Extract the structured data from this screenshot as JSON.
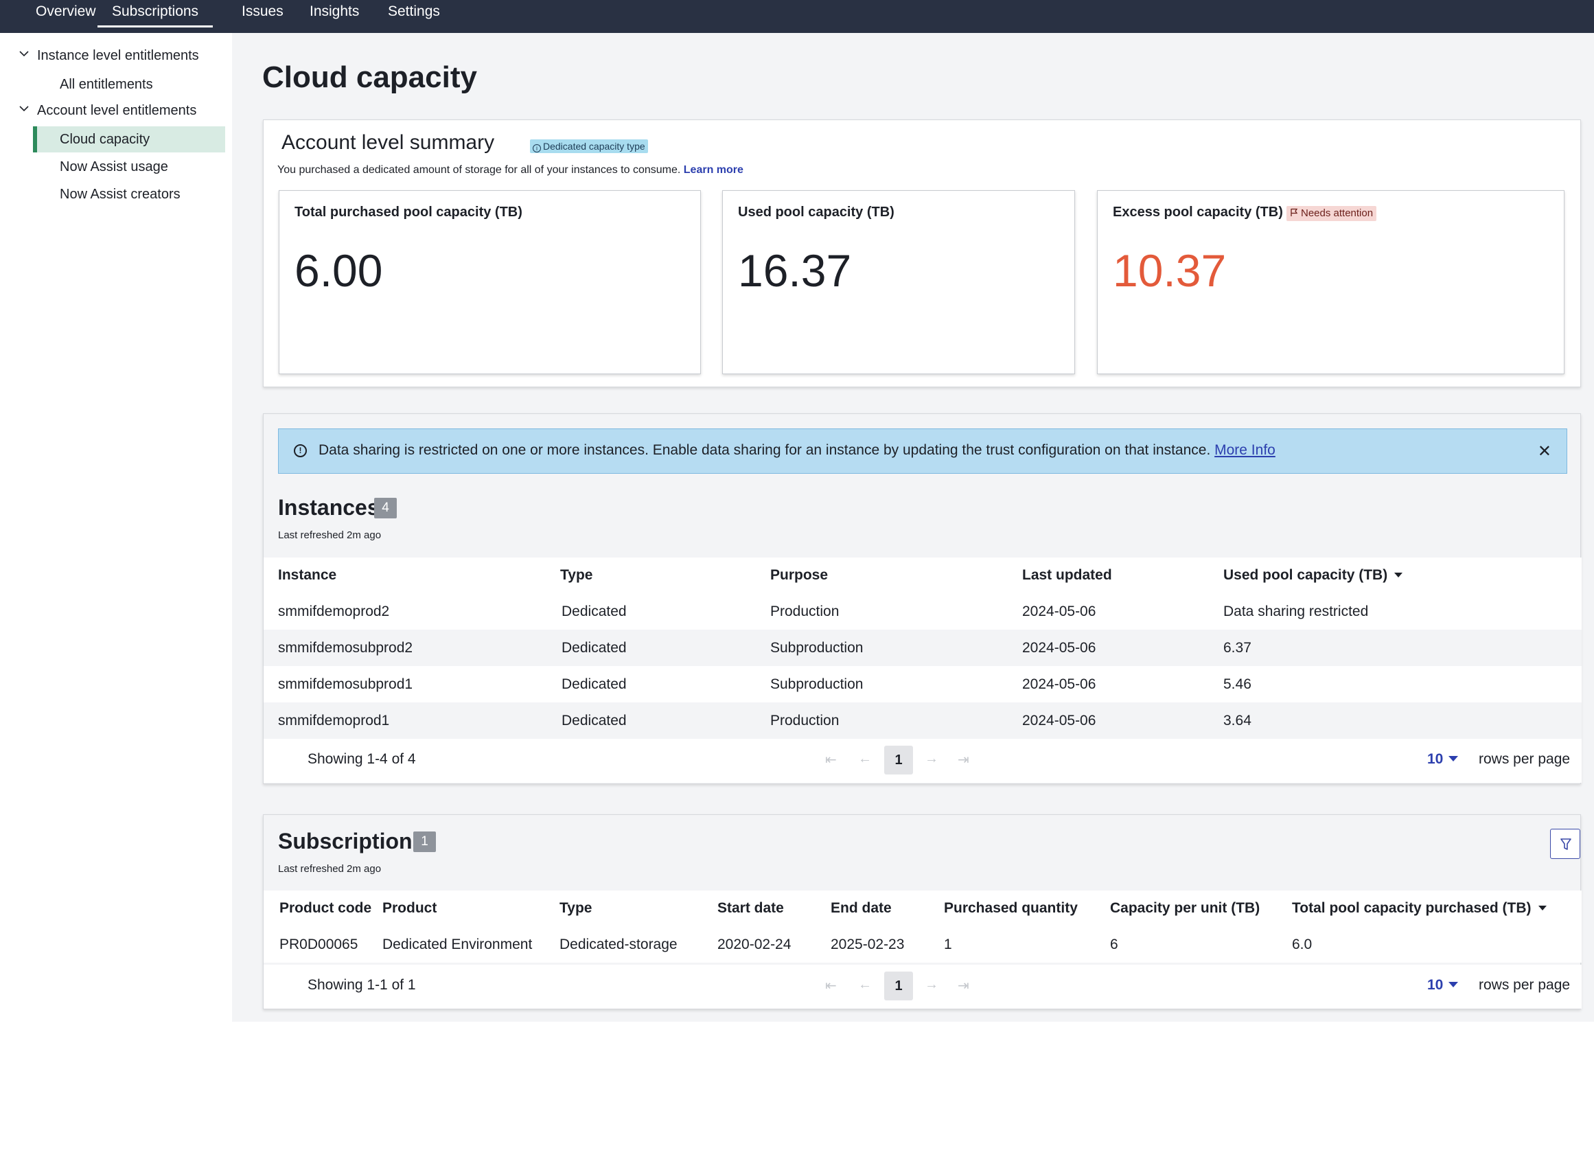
{
  "nav": {
    "tabs": [
      {
        "label": "Overview"
      },
      {
        "label": "Subscriptions"
      },
      {
        "label": "Issues"
      },
      {
        "label": "Insights"
      },
      {
        "label": "Settings"
      }
    ],
    "active_tab": "Subscriptions"
  },
  "sidebar": {
    "groups": [
      {
        "label": "Instance level entitlements",
        "items": [
          {
            "label": "All entitlements"
          }
        ]
      },
      {
        "label": "Account level entitlements",
        "items": [
          {
            "label": "Cloud capacity"
          },
          {
            "label": "Now Assist usage"
          },
          {
            "label": "Now Assist creators"
          }
        ]
      }
    ],
    "active_item": "Cloud capacity"
  },
  "page": {
    "title": "Cloud capacity"
  },
  "summary": {
    "title": "Account level summary",
    "badge": "Dedicated capacity type",
    "description": "You purchased a dedicated amount of storage for all of your instances to consume.",
    "learn_more": "Learn more",
    "metrics": [
      {
        "label": "Total purchased pool capacity (TB)",
        "value": "6.00"
      },
      {
        "label": "Used pool capacity (TB)",
        "value": "16.37"
      },
      {
        "label": "Excess pool capacity (TB)",
        "value": "10.37",
        "badge": "Needs attention"
      }
    ]
  },
  "banner": {
    "text": "Data sharing is restricted on one or more instances. Enable data sharing for an instance by updating the trust configuration on that instance.",
    "link": "More Info"
  },
  "instances": {
    "title": "Instances",
    "count": "4",
    "refreshed": "Last refreshed 2m ago",
    "columns": [
      "Instance",
      "Type",
      "Purpose",
      "Last updated",
      "Used pool capacity (TB)"
    ],
    "rows": [
      [
        "smmifdemoprod2",
        "Dedicated",
        "Production",
        "2024-05-06",
        "Data sharing restricted"
      ],
      [
        "smmifdemosubprod2",
        "Dedicated",
        "Subproduction",
        "2024-05-06",
        "6.37"
      ],
      [
        "smmifdemosubprod1",
        "Dedicated",
        "Subproduction",
        "2024-05-06",
        "5.46"
      ],
      [
        "smmifdemoprod1",
        "Dedicated",
        "Production",
        "2024-05-06",
        "3.64"
      ]
    ],
    "pager": {
      "showing": "Showing 1-4 of 4",
      "page": "1",
      "rows_per_page": "10",
      "rows_label": "rows per page"
    }
  },
  "subscriptions": {
    "title": "Subscriptions",
    "count": "1",
    "refreshed": "Last refreshed 2m ago",
    "columns": [
      "Product code",
      "Product",
      "Type",
      "Start date",
      "End date",
      "Purchased quantity",
      "Capacity per unit (TB)",
      "Total pool capacity purchased (TB)"
    ],
    "rows": [
      [
        "PR0D00065",
        "Dedicated Environment",
        "Dedicated-storage",
        "2020-02-24",
        "2025-02-23",
        "1",
        "6",
        "6.0"
      ]
    ],
    "pager": {
      "showing": "Showing 1-1 of 1",
      "page": "1",
      "rows_per_page": "10",
      "rows_label": "rows per page"
    }
  },
  "colors": {
    "nav_bg": "#293143",
    "accent_green": "#2d8a5b",
    "alert_red": "#e35a3a",
    "link_blue": "#2c3fae",
    "banner_bg": "#b6dcf2"
  }
}
